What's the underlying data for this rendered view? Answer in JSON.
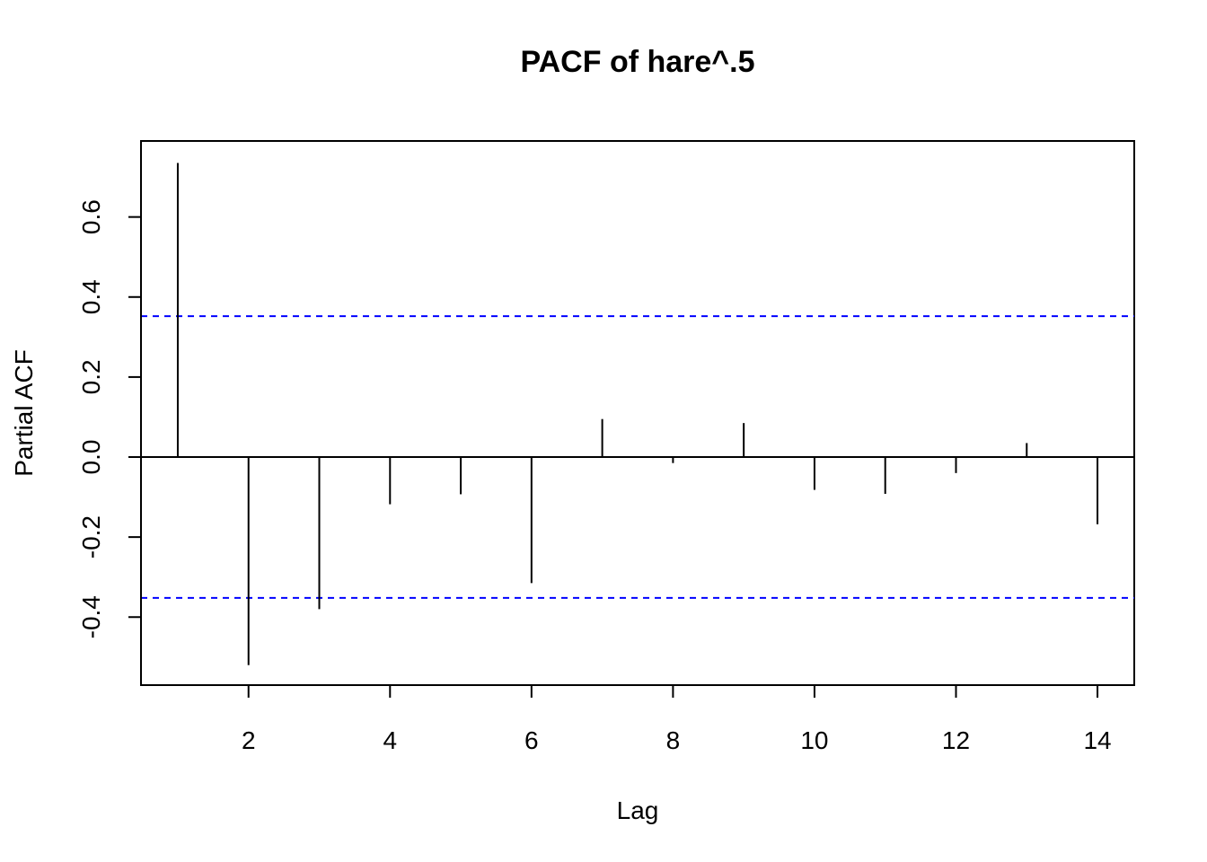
{
  "chart_data": {
    "type": "bar",
    "title": "PACF of hare^.5",
    "xlabel": "Lag",
    "ylabel": "Partial ACF",
    "xlim": [
      0.48,
      14.52
    ],
    "ylim": [
      -0.57,
      0.79
    ],
    "x_ticks": [
      2,
      4,
      6,
      8,
      10,
      12,
      14
    ],
    "x_tick_labels": [
      "2",
      "4",
      "6",
      "8",
      "10",
      "12",
      "14"
    ],
    "y_ticks": [
      -0.4,
      -0.2,
      0.0,
      0.2,
      0.4,
      0.6
    ],
    "y_tick_labels": [
      "-0.4",
      "-0.2",
      "0.0",
      "0.2",
      "0.4",
      "0.6"
    ],
    "lags": [
      1,
      2,
      3,
      4,
      5,
      6,
      7,
      8,
      9,
      10,
      11,
      12,
      13,
      14
    ],
    "values": [
      0.735,
      -0.52,
      -0.38,
      -0.118,
      -0.093,
      -0.315,
      0.095,
      -0.015,
      0.085,
      -0.082,
      -0.092,
      -0.04,
      0.035,
      -0.168
    ],
    "confidence_bound": 0.352,
    "grid": false,
    "colors": {
      "spikes": "#000000",
      "confidence": "#0000ff",
      "axes": "#000000"
    }
  }
}
